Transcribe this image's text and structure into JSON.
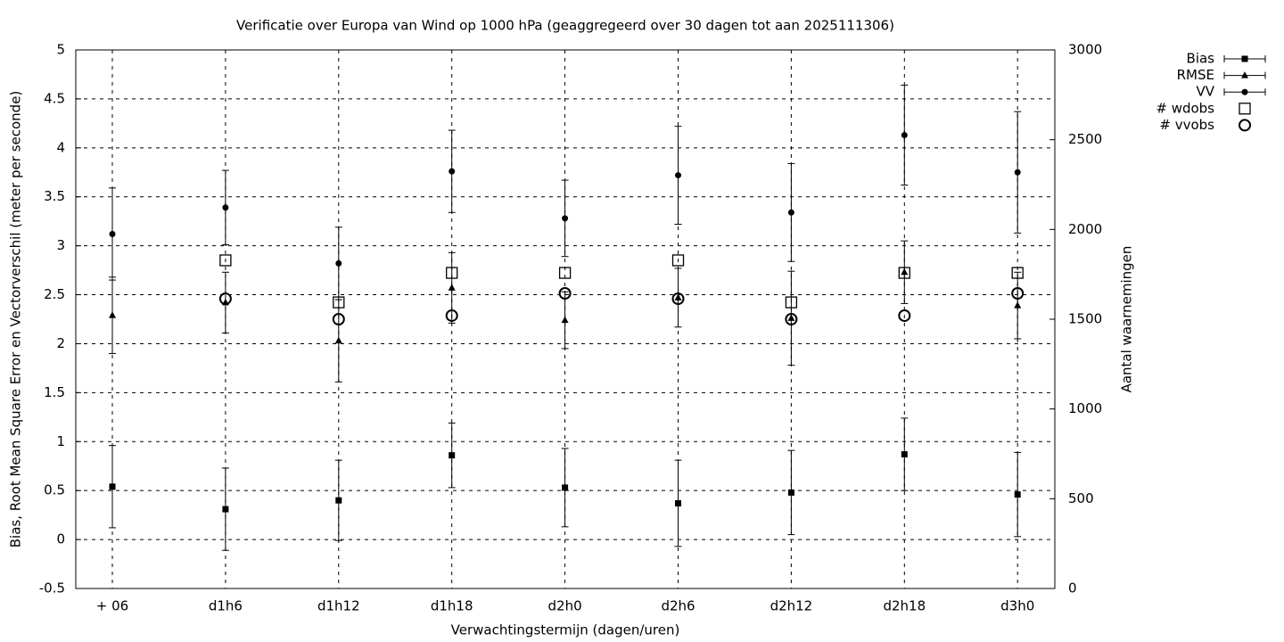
{
  "chart_data": {
    "type": "errorbar",
    "title": "Verificatie over Europa van Wind op 1000 hPa (geaggregeerd over 30 dagen tot aan 2025111306)",
    "xlabel": "Verwachtingstermijn (dagen/uren)",
    "ylabel": "Bias, Root Mean Square Error en Vectorverschil (meter per seconde)",
    "y2label": "Aantal waarnemingen",
    "categories": [
      "+ 06",
      "d1h6",
      "d1h12",
      "d1h18",
      "d2h0",
      "d2h6",
      "d2h12",
      "d2h18",
      "d3h0"
    ],
    "ylim": [
      -0.5,
      5
    ],
    "yticks": [
      -0.5,
      0,
      0.5,
      1,
      1.5,
      2,
      2.5,
      3,
      3.5,
      4,
      4.5,
      5
    ],
    "y2lim": [
      0,
      3000
    ],
    "y2ticks": [
      0,
      500,
      1000,
      1500,
      2000,
      2500,
      3000
    ],
    "grid": true,
    "legend": "top-right",
    "series": [
      {
        "name": "Bias",
        "color": "#000000",
        "marker": "filled-square",
        "values": [
          0.54,
          0.31,
          0.4,
          0.86,
          0.53,
          0.37,
          0.48,
          0.87,
          0.46
        ],
        "errors": [
          0.42,
          0.42,
          0.41,
          0.33,
          0.4,
          0.44,
          0.43,
          0.37,
          0.43
        ]
      },
      {
        "name": "RMSE",
        "color": "#000000",
        "marker": "filled-triangle",
        "values": [
          2.29,
          2.42,
          2.03,
          2.57,
          2.24,
          2.47,
          2.26,
          2.73,
          2.39
        ],
        "errors": [
          0.39,
          0.31,
          0.42,
          0.36,
          0.29,
          0.3,
          0.48,
          0.32,
          0.34
        ]
      },
      {
        "name": "VV",
        "color": "#000000",
        "marker": "filled-circle",
        "values": [
          3.12,
          3.39,
          2.82,
          3.76,
          3.28,
          3.72,
          3.34,
          4.13,
          3.75
        ],
        "errors": [
          0.47,
          0.38,
          0.37,
          0.42,
          0.39,
          0.5,
          0.5,
          0.51,
          0.62
        ]
      },
      {
        "name": "# wdobs",
        "color": "#000000",
        "marker": "open-square",
        "axis": "y2",
        "values": [
          null,
          1828,
          1594,
          1758,
          1758,
          1828,
          1594,
          1758,
          1758
        ]
      },
      {
        "name": "# vvobs",
        "color": "#000000",
        "marker": "open-circle",
        "axis": "y2",
        "values": [
          null,
          1614,
          1500,
          1520,
          1644,
          1614,
          1500,
          1520,
          1644
        ]
      }
    ]
  }
}
